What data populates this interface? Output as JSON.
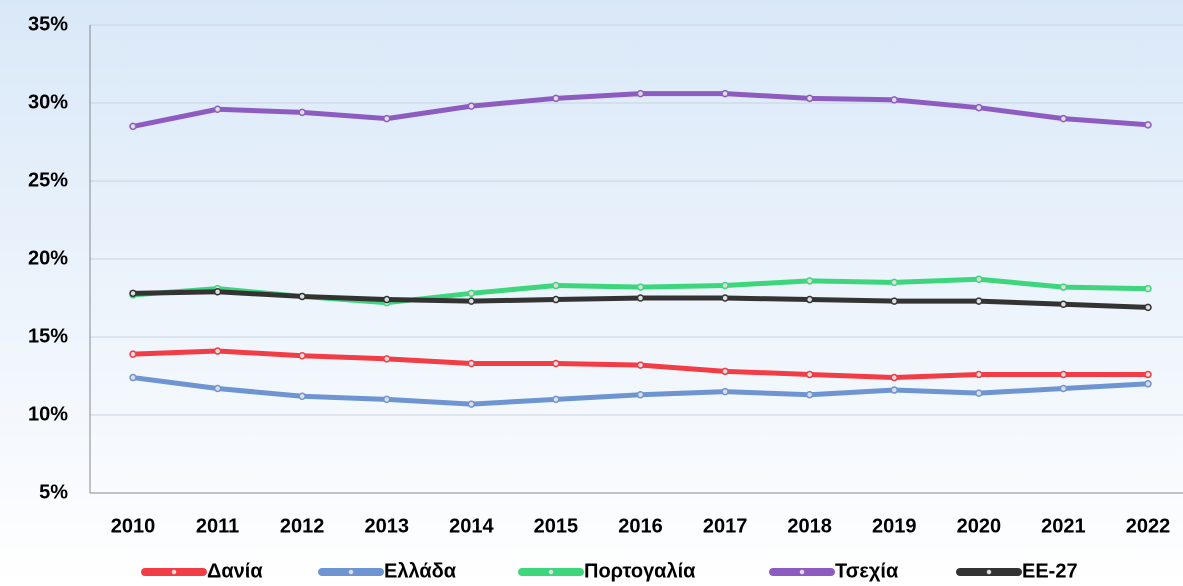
{
  "chart_data": {
    "type": "line",
    "categories": [
      "2010",
      "2011",
      "2012",
      "2013",
      "2014",
      "2015",
      "2016",
      "2017",
      "2018",
      "2019",
      "2020",
      "2021",
      "2022"
    ],
    "series": [
      {
        "name": "Δανία",
        "color": "#f23c46",
        "values": [
          13.9,
          14.1,
          13.8,
          13.6,
          13.3,
          13.3,
          13.2,
          12.8,
          12.6,
          12.4,
          12.6,
          12.6,
          12.6
        ]
      },
      {
        "name": "Ελλάδα",
        "color": "#6e94d2",
        "values": [
          12.4,
          11.7,
          11.2,
          11.0,
          10.7,
          11.0,
          11.3,
          11.5,
          11.3,
          11.6,
          11.4,
          11.7,
          12.0
        ]
      },
      {
        "name": "Πορτογαλία",
        "color": "#3dd67d",
        "values": [
          17.7,
          18.1,
          17.6,
          17.2,
          17.8,
          18.3,
          18.2,
          18.3,
          18.6,
          18.5,
          18.7,
          18.2,
          18.1
        ]
      },
      {
        "name": "Τσεχία",
        "color": "#8e5cc0",
        "values": [
          28.5,
          29.6,
          29.4,
          29.0,
          29.8,
          30.3,
          30.6,
          30.6,
          30.3,
          30.2,
          29.7,
          29.0,
          28.6
        ]
      },
      {
        "name": "ΕΕ-27",
        "color": "#333333",
        "values": [
          17.8,
          17.9,
          17.6,
          17.4,
          17.3,
          17.4,
          17.5,
          17.5,
          17.4,
          17.3,
          17.3,
          17.1,
          16.9
        ]
      }
    ],
    "ylim": [
      5,
      35
    ],
    "yticks": [
      {
        "value": 5,
        "label": "5%"
      },
      {
        "value": 10,
        "label": "10%"
      },
      {
        "value": 15,
        "label": "15%"
      },
      {
        "value": 20,
        "label": "20%"
      },
      {
        "value": 25,
        "label": "25%"
      },
      {
        "value": 30,
        "label": "30%"
      },
      {
        "value": 35,
        "label": "35%"
      }
    ],
    "grid": true,
    "legend": "bottom"
  }
}
